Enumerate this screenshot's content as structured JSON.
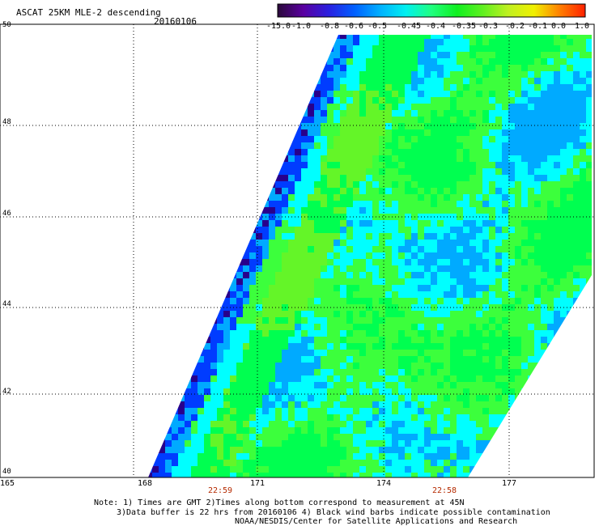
{
  "title": "ASCAT 25KM MLE-2 descending",
  "date": "20160106",
  "colorbar": {
    "labels": [
      "-15.0",
      "-1.0",
      "-0.8",
      "-0.6",
      "-0.5",
      "-0.45",
      "-0.4",
      "-0.35",
      "-0.3",
      "-0.2",
      "-0.1",
      "0.0",
      "1.0"
    ],
    "colors": [
      "#2a0a3a",
      "#5a00a0",
      "#2a20e0",
      "#0060ff",
      "#00b0ff",
      "#00f0f0",
      "#20ff80",
      "#10f020",
      "#60f020",
      "#c0f020",
      "#f0f000",
      "#ff8000",
      "#ff2000"
    ]
  },
  "map": {
    "lat_labels": [
      "50",
      "48",
      "46",
      "44",
      "42",
      "40"
    ],
    "lon_labels": [
      "165",
      "168",
      "171",
      "174",
      "177"
    ],
    "times": [
      "22:59",
      "22:58"
    ]
  },
  "notes": {
    "line1": "Note: 1) Times are GMT 2)Times along bottom correspond to measurement at 45N",
    "line2": "3)Data buffer is 22 hrs from 20160106 4) Black wind barbs indicate possible contamination",
    "line3": "NOAA/NESDIS/Center for Satellite Applications and Research"
  }
}
